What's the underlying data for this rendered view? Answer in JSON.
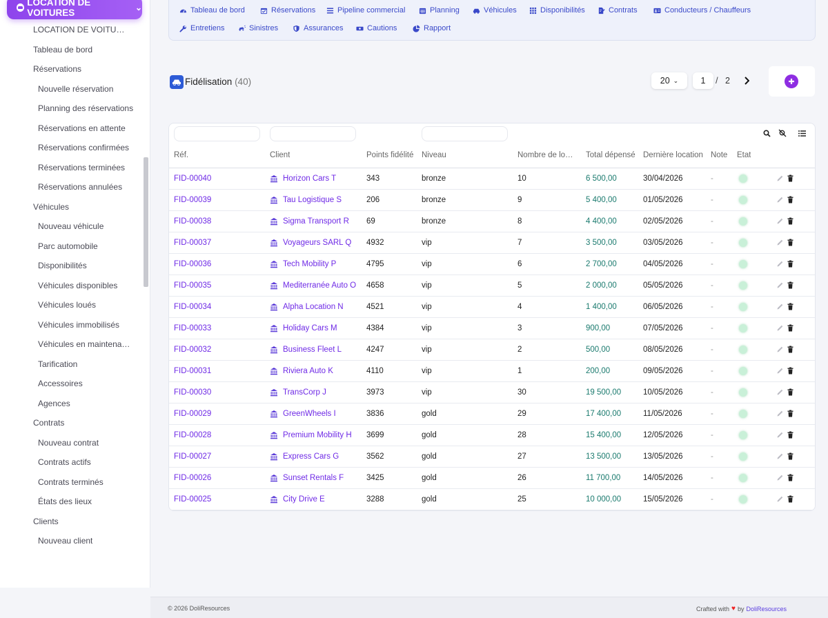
{
  "module": {
    "label": "LOCATION DE VOITURES"
  },
  "sidebar": {
    "items": [
      {
        "label": "LOCATION DE VOITURES",
        "level": 0
      },
      {
        "label": "Tableau de bord",
        "level": 0
      },
      {
        "label": "Réservations",
        "level": 0
      },
      {
        "label": "Nouvelle réservation",
        "level": 1
      },
      {
        "label": "Planning des réservations",
        "level": 1
      },
      {
        "label": "Réservations en attente",
        "level": 1
      },
      {
        "label": "Réservations confirmées",
        "level": 1
      },
      {
        "label": "Réservations terminées",
        "level": 1
      },
      {
        "label": "Réservations annulées",
        "level": 1
      },
      {
        "label": "Véhicules",
        "level": 0
      },
      {
        "label": "Nouveau véhicule",
        "level": 1
      },
      {
        "label": "Parc automobile",
        "level": 1
      },
      {
        "label": "Disponibilités",
        "level": 1
      },
      {
        "label": "Véhicules disponibles",
        "level": 1
      },
      {
        "label": "Véhicules loués",
        "level": 1
      },
      {
        "label": "Véhicules immobilisés",
        "level": 1
      },
      {
        "label": "Véhicules en maintenance",
        "level": 1
      },
      {
        "label": "Tarification",
        "level": 1
      },
      {
        "label": "Accessoires",
        "level": 1
      },
      {
        "label": "Agences",
        "level": 1
      },
      {
        "label": "Contrats",
        "level": 0
      },
      {
        "label": "Nouveau contrat",
        "level": 1
      },
      {
        "label": "Contrats actifs",
        "level": 1
      },
      {
        "label": "Contrats terminés",
        "level": 1
      },
      {
        "label": "États des lieux",
        "level": 1
      },
      {
        "label": "Clients",
        "level": 0
      },
      {
        "label": "Nouveau client",
        "level": 1
      }
    ]
  },
  "topnav": {
    "items": [
      {
        "label": "Tableau de bord",
        "icon": "dashboard-icon"
      },
      {
        "label": "Réservations",
        "icon": "calendar-check-icon"
      },
      {
        "label": "Pipeline commercial",
        "icon": "list-icon"
      },
      {
        "label": "Planning",
        "icon": "calendar-icon"
      },
      {
        "label": "Véhicules",
        "icon": "car-icon"
      },
      {
        "label": "Disponibilités",
        "icon": "grid-icon"
      },
      {
        "label": "Contrats",
        "icon": "contract-icon"
      },
      {
        "label": "Conducteurs / Chauffeurs",
        "icon": "id-card-icon"
      },
      {
        "label": "Entretiens",
        "icon": "wrench-icon"
      },
      {
        "label": "Sinistres",
        "icon": "car-crash-icon"
      },
      {
        "label": "Assurances",
        "icon": "shield-icon"
      },
      {
        "label": "Cautions",
        "icon": "money-icon"
      },
      {
        "label": "Rapport",
        "icon": "pie-chart-icon"
      }
    ]
  },
  "page": {
    "title": "Fidélisation",
    "count": "(40)"
  },
  "pagination": {
    "per_page": "20",
    "current": "1",
    "separator": "/",
    "total": "2"
  },
  "table": {
    "headers": [
      "Réf.",
      "Client",
      "Points fidélité",
      "Niveau",
      "Nombre de locations",
      "Total dépensé",
      "Dernière location",
      "Note",
      "État"
    ],
    "rows": [
      {
        "ref": "FID-00040",
        "client": "Horizon Cars T",
        "points": "343",
        "niveau": "bronze",
        "nb": "10",
        "total": "6 500,00",
        "date": "30/04/2026",
        "note": "-"
      },
      {
        "ref": "FID-00039",
        "client": "Tau Logistique S",
        "points": "206",
        "niveau": "bronze",
        "nb": "9",
        "total": "5 400,00",
        "date": "01/05/2026",
        "note": "-"
      },
      {
        "ref": "FID-00038",
        "client": "Sigma Transport R",
        "points": "69",
        "niveau": "bronze",
        "nb": "8",
        "total": "4 400,00",
        "date": "02/05/2026",
        "note": "-"
      },
      {
        "ref": "FID-00037",
        "client": "Voyageurs SARL Q",
        "points": "4932",
        "niveau": "vip",
        "nb": "7",
        "total": "3 500,00",
        "date": "03/05/2026",
        "note": "-"
      },
      {
        "ref": "FID-00036",
        "client": "Tech Mobility P",
        "points": "4795",
        "niveau": "vip",
        "nb": "6",
        "total": "2 700,00",
        "date": "04/05/2026",
        "note": "-"
      },
      {
        "ref": "FID-00035",
        "client": "Mediterranée Auto O",
        "points": "4658",
        "niveau": "vip",
        "nb": "5",
        "total": "2 000,00",
        "date": "05/05/2026",
        "note": "-"
      },
      {
        "ref": "FID-00034",
        "client": "Alpha Location N",
        "points": "4521",
        "niveau": "vip",
        "nb": "4",
        "total": "1 400,00",
        "date": "06/05/2026",
        "note": "-"
      },
      {
        "ref": "FID-00033",
        "client": "Holiday Cars M",
        "points": "4384",
        "niveau": "vip",
        "nb": "3",
        "total": "900,00",
        "date": "07/05/2026",
        "note": "-"
      },
      {
        "ref": "FID-00032",
        "client": "Business Fleet L",
        "points": "4247",
        "niveau": "vip",
        "nb": "2",
        "total": "500,00",
        "date": "08/05/2026",
        "note": "-"
      },
      {
        "ref": "FID-00031",
        "client": "Riviera Auto K",
        "points": "4110",
        "niveau": "vip",
        "nb": "1",
        "total": "200,00",
        "date": "09/05/2026",
        "note": "-"
      },
      {
        "ref": "FID-00030",
        "client": "TransCorp J",
        "points": "3973",
        "niveau": "vip",
        "nb": "30",
        "total": "19 500,00",
        "date": "10/05/2026",
        "note": "-"
      },
      {
        "ref": "FID-00029",
        "client": "GreenWheels I",
        "points": "3836",
        "niveau": "gold",
        "nb": "29",
        "total": "17 400,00",
        "date": "11/05/2026",
        "note": "-"
      },
      {
        "ref": "FID-00028",
        "client": "Premium Mobility H",
        "points": "3699",
        "niveau": "gold",
        "nb": "28",
        "total": "15 400,00",
        "date": "12/05/2026",
        "note": "-"
      },
      {
        "ref": "FID-00027",
        "client": "Express Cars G",
        "points": "3562",
        "niveau": "gold",
        "nb": "27",
        "total": "13 500,00",
        "date": "13/05/2026",
        "note": "-"
      },
      {
        "ref": "FID-00026",
        "client": "Sunset Rentals F",
        "points": "3425",
        "niveau": "gold",
        "nb": "26",
        "total": "11 700,00",
        "date": "14/05/2026",
        "note": "-"
      },
      {
        "ref": "FID-00025",
        "client": "City Drive E",
        "points": "3288",
        "niveau": "gold",
        "nb": "25",
        "total": "10 000,00",
        "date": "15/05/2026",
        "note": "-"
      }
    ]
  },
  "footer": {
    "copyright": "© 2026 DoliResources",
    "crafted": "Crafted with",
    "by": "by",
    "brand": "DoliResources"
  },
  "colors": {
    "accent": "#8e2de2",
    "link": "#6f2ae6",
    "nav": "#3a49c9",
    "amount": "#1a7a6e",
    "status_dot": "#c9f0d8"
  }
}
